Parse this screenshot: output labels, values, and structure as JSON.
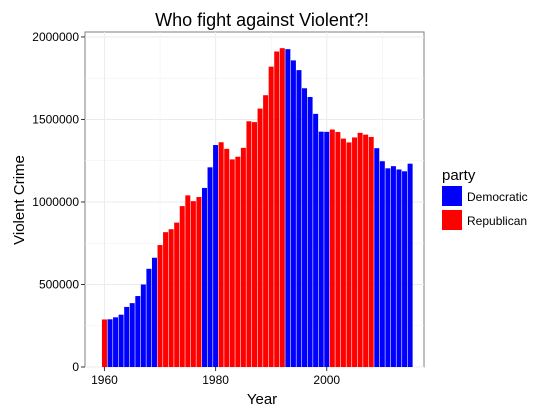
{
  "chart_data": {
    "type": "bar",
    "title": "Who fight against Violent?!",
    "xlabel": "Year",
    "ylabel": "Violent Crime",
    "xlim": [
      1956.5,
      2017.5
    ],
    "ylim": [
      0,
      2030000
    ],
    "x_ticks": [
      1960,
      1980,
      2000
    ],
    "x_tick_labels": [
      "1960",
      "1980",
      "2000"
    ],
    "y_ticks": [
      0,
      500000,
      1000000,
      1500000,
      2000000
    ],
    "y_tick_labels": [
      "0",
      "500000",
      "1000000",
      "1500000",
      "2000000"
    ],
    "grid": true,
    "legend": {
      "title": "party",
      "position": "right",
      "entries": [
        {
          "label": "Democratic",
          "color": "#0000ff"
        },
        {
          "label": "Republican",
          "color": "#ff0000"
        }
      ]
    },
    "colors": {
      "Democratic": "#0000ff",
      "Republican": "#ff0000"
    },
    "x": [
      1960,
      1961,
      1962,
      1963,
      1964,
      1965,
      1966,
      1967,
      1968,
      1969,
      1970,
      1971,
      1972,
      1973,
      1974,
      1975,
      1976,
      1977,
      1978,
      1979,
      1980,
      1981,
      1982,
      1983,
      1984,
      1985,
      1986,
      1987,
      1988,
      1989,
      1990,
      1991,
      1992,
      1993,
      1994,
      1995,
      1996,
      1997,
      1998,
      1999,
      2000,
      2001,
      2002,
      2003,
      2004,
      2005,
      2006,
      2007,
      2008,
      2009,
      2010,
      2011,
      2012,
      2013,
      2014,
      2015
    ],
    "values": [
      288000,
      289000,
      301000,
      317000,
      364000,
      387000,
      430000,
      500000,
      595000,
      662000,
      739000,
      817000,
      835000,
      875000,
      975000,
      1040000,
      1005000,
      1030000,
      1085000,
      1210000,
      1345000,
      1362000,
      1322000,
      1258000,
      1274000,
      1328000,
      1489000,
      1484000,
      1566000,
      1647000,
      1820000,
      1912000,
      1932000,
      1926000,
      1858000,
      1799000,
      1689000,
      1636000,
      1534000,
      1426000,
      1425000,
      1439000,
      1424000,
      1384000,
      1361000,
      1391000,
      1419000,
      1408000,
      1394000,
      1326000,
      1247000,
      1204000,
      1217000,
      1197000,
      1186000,
      1232000
    ],
    "series_party": [
      "Republican",
      "Democratic",
      "Democratic",
      "Democratic",
      "Democratic",
      "Democratic",
      "Democratic",
      "Democratic",
      "Democratic",
      "Democratic",
      "Republican",
      "Republican",
      "Republican",
      "Republican",
      "Republican",
      "Republican",
      "Republican",
      "Republican",
      "Democratic",
      "Democratic",
      "Democratic",
      "Republican",
      "Republican",
      "Republican",
      "Republican",
      "Republican",
      "Republican",
      "Republican",
      "Republican",
      "Republican",
      "Republican",
      "Republican",
      "Republican",
      "Democratic",
      "Democratic",
      "Democratic",
      "Democratic",
      "Democratic",
      "Democratic",
      "Democratic",
      "Democratic",
      "Republican",
      "Republican",
      "Republican",
      "Republican",
      "Republican",
      "Republican",
      "Republican",
      "Republican",
      "Democratic",
      "Democratic",
      "Democratic",
      "Democratic",
      "Democratic",
      "Democratic",
      "Democratic"
    ]
  }
}
